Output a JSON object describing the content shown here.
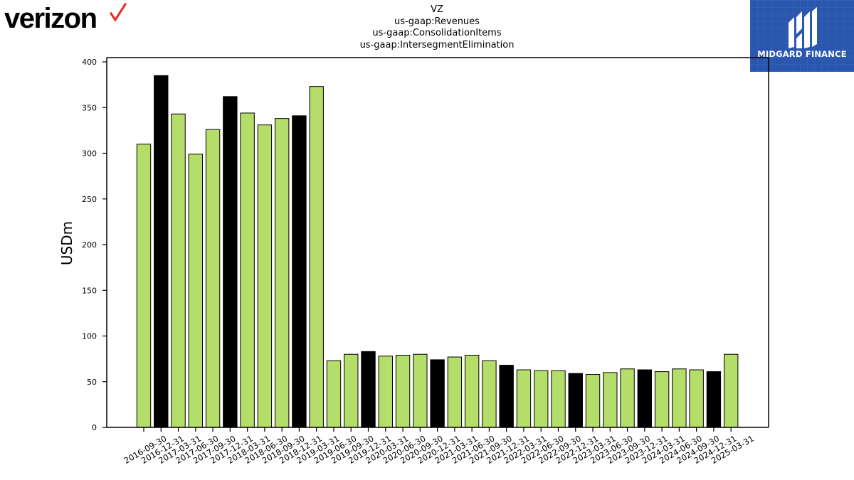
{
  "header": {
    "logo_text": "verizon",
    "title_lines": [
      "VZ",
      "us-gaap:Revenues",
      "us-gaap:ConsolidationItems",
      "us-gaap:IntersegmentElimination"
    ],
    "badge_text": "MIDGARD FINANCE"
  },
  "colors": {
    "bar_default": "#b5dd6a",
    "bar_highlight": "#000000",
    "verizon_check": "#e3342f",
    "badge_bg": "#2a56ad"
  },
  "chart_data": {
    "type": "bar",
    "ylabel": "USDm",
    "xlabel": "",
    "ylim": [
      0,
      400
    ],
    "yticks": [
      0,
      50,
      100,
      150,
      200,
      250,
      300,
      350,
      400
    ],
    "grid": false,
    "categories": [
      "2016-09-30",
      "2016-12-31",
      "2017-03-31",
      "2017-06-30",
      "2017-09-30",
      "2017-12-31",
      "2018-03-31",
      "2018-06-30",
      "2018-09-30",
      "2018-12-31",
      "2019-03-31",
      "2019-06-30",
      "2019-09-30",
      "2019-12-31",
      "2020-03-31",
      "2020-06-30",
      "2020-09-30",
      "2020-12-31",
      "2021-03-31",
      "2021-06-30",
      "2021-09-30",
      "2021-12-31",
      "2022-03-31",
      "2022-06-30",
      "2022-09-30",
      "2022-12-31",
      "2023-03-31",
      "2023-06-30",
      "2023-09-30",
      "2023-12-31",
      "2024-03-31",
      "2024-06-30",
      "2024-09-30",
      "2024-12-31",
      "2025-03-31"
    ],
    "values": [
      310,
      385,
      343,
      299,
      326,
      362,
      344,
      331,
      338,
      341,
      373,
      73,
      80,
      83,
      78,
      79,
      80,
      74,
      77,
      79,
      73,
      68,
      63,
      62,
      62,
      59,
      58,
      60,
      64,
      63,
      61,
      64,
      63,
      61,
      80
    ],
    "highlighted": [
      false,
      true,
      false,
      false,
      false,
      true,
      false,
      false,
      false,
      true,
      false,
      false,
      false,
      true,
      false,
      false,
      false,
      true,
      false,
      false,
      false,
      true,
      false,
      false,
      false,
      true,
      false,
      false,
      false,
      true,
      false,
      false,
      false,
      true,
      false
    ]
  }
}
